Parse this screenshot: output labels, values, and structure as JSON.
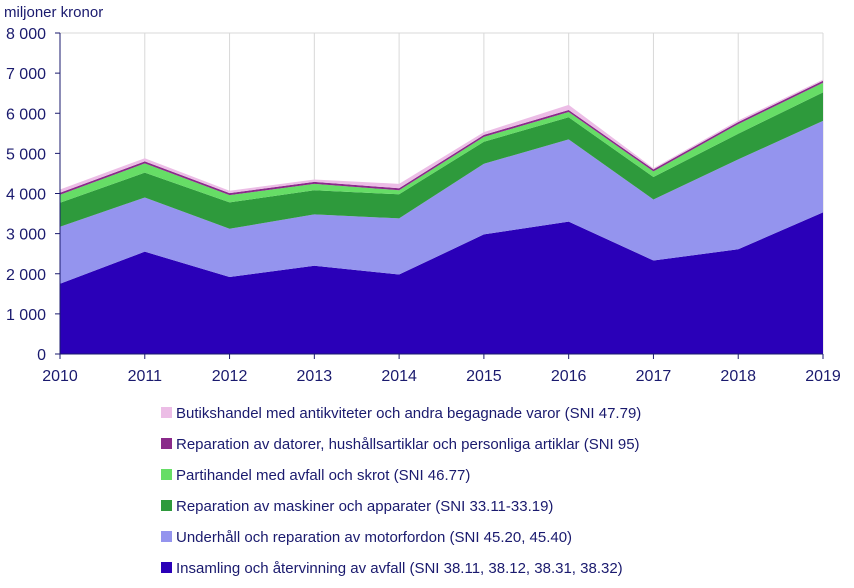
{
  "chart_data": {
    "type": "area",
    "stacked": true,
    "ylabel": "miljoner kronor",
    "ylim": [
      0,
      8000
    ],
    "yticks": [
      0,
      1000,
      2000,
      3000,
      4000,
      5000,
      6000,
      7000,
      8000
    ],
    "ytick_labels": [
      "0",
      "1 000",
      "2 000",
      "3 000",
      "4 000",
      "5 000",
      "6 000",
      "7 000",
      "8 000"
    ],
    "x": [
      "2010",
      "2011",
      "2012",
      "2013",
      "2014",
      "2015",
      "2016",
      "2017",
      "2018",
      "2019"
    ],
    "grid": "vertical",
    "legend_position": "bottom",
    "series": [
      {
        "name": "Insamling och återvinning av avfall (SNI 38.11, 38.12, 38.31, 38.32)",
        "color": "#2a00b8",
        "values": [
          1750,
          2550,
          1920,
          2200,
          1980,
          2980,
          3300,
          2330,
          2610,
          3530
        ]
      },
      {
        "name": "Underhåll och reparation av motorfordon (SNI 45.20, 45.40)",
        "color": "#9494ee",
        "values": [
          1420,
          1350,
          1200,
          1280,
          1400,
          1760,
          2050,
          1520,
          2240,
          2280
        ]
      },
      {
        "name": "Reparation av maskiner och apparater (SNI 33.11-33.19)",
        "color": "#2e9a3c",
        "values": [
          600,
          620,
          660,
          600,
          600,
          550,
          550,
          560,
          640,
          710
        ]
      },
      {
        "name": "Partihandel med avfall och skrot (SNI 46.77)",
        "color": "#66dd66",
        "values": [
          200,
          230,
          180,
          160,
          100,
          120,
          130,
          140,
          240,
          240
        ]
      },
      {
        "name": "Reparation av datorer, hushållsartiklar och personliga artiklar (SNI 95)",
        "color": "#8a2a8a",
        "values": [
          50,
          50,
          50,
          50,
          50,
          50,
          50,
          50,
          50,
          50
        ]
      },
      {
        "name": "Butikshandel med antikviteter och andra begagnade varor (SNI 47.79)",
        "color": "#ecbde6",
        "values": [
          80,
          80,
          60,
          60,
          110,
          70,
          130,
          30,
          40,
          30
        ]
      }
    ]
  }
}
